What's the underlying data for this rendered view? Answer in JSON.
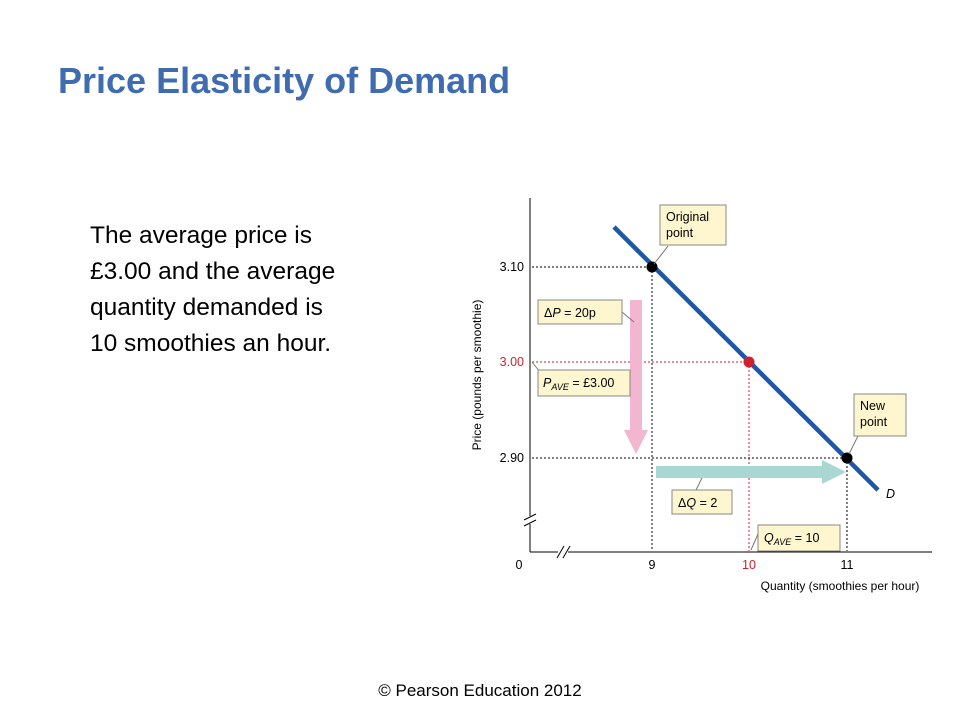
{
  "slide": {
    "title": "Price Elasticity of Demand",
    "body_lines": [
      "The average price is",
      "£3.00 and the average",
      "quantity demanded is",
      "10 smoothies an hour."
    ],
    "footer": "© Pearson Education 2012"
  },
  "chart_data": {
    "type": "line",
    "xlabel": "Quantity (smoothies per hour)",
    "ylabel": "Price (pounds per smoothie)",
    "x_ticks": [
      "0",
      "9",
      "10",
      "11"
    ],
    "y_ticks": [
      "2.90",
      "3.00",
      "3.10"
    ],
    "series": [
      {
        "name": "D",
        "points": [
          [
            9,
            3.1
          ],
          [
            10,
            3.0
          ],
          [
            11,
            2.9
          ]
        ]
      }
    ],
    "points": [
      {
        "x": 9,
        "y": 3.1,
        "label": [
          "Original",
          "point"
        ],
        "color": "#000000"
      },
      {
        "x": 10,
        "y": 3.0,
        "label": [],
        "color": "#d0202e"
      },
      {
        "x": 11,
        "y": 2.9,
        "label": [
          "New",
          "point"
        ],
        "color": "#000000"
      }
    ],
    "annotations": {
      "delta_p": {
        "prefix": "Δ",
        "var": "P",
        "suffix": " = 20p"
      },
      "p_ave": {
        "var": "P",
        "sub": "AVE",
        "suffix": " = £3.00"
      },
      "delta_q": {
        "prefix": "Δ",
        "var": "Q",
        "suffix": " = 2"
      },
      "q_ave": {
        "var": "Q",
        "sub": "AVE",
        "suffix": " = 10"
      }
    },
    "colors": {
      "demand_line": "#1f57a8",
      "highlight": "#d0202e",
      "price_arrow": "#f2b6d0",
      "quantity_arrow": "#a9d8d2",
      "label_box": "#fdf6cf",
      "title": "#3f6cb1"
    }
  }
}
